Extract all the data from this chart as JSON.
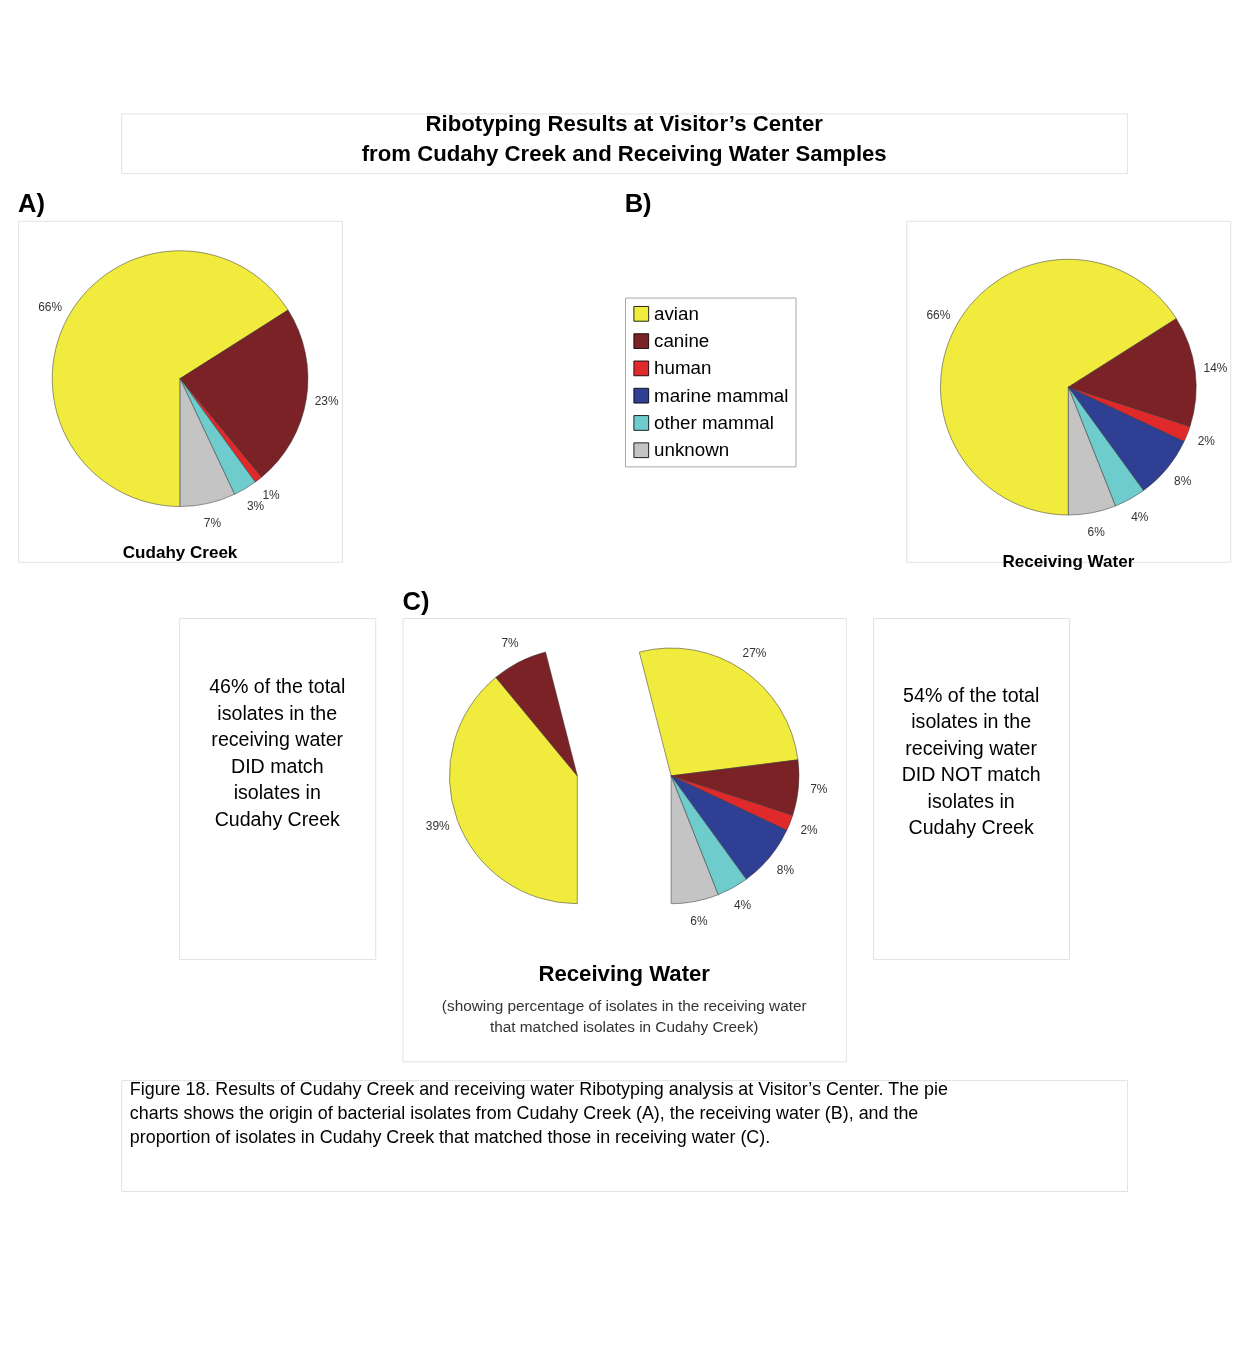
{
  "chart_data": [
    {
      "type": "other",
      "title": [
        "Ribotyping Results at Visitor’s Center",
        "from Cudahy Creek and Receiving Water Samples"
      ],
      "annotations": [
        "Figure 18.  Results of Cudahy Creek and receiving water Ribotyping analysis at Visitor’s Center.  The pie charts shows the origin of bacterial isolates from Cudahy Creek (A), the receiving water (B), and the proportion of isolates in Cudahy Creek that matched those in receiving water (C)."
      ]
    },
    {
      "type": "pie",
      "title": "A)",
      "xlabel": "Cudahy Creek",
      "values": [
        66,
        23,
        1,
        3,
        7
      ],
      "colors": [
        "#f0eb3c",
        "#7b2226",
        "#e0292b",
        "#6fcccc",
        "#c4c4c4"
      ],
      "value_labels": [
        "66%",
        "23%",
        "1%",
        "3%",
        "7%"
      ]
    },
    {
      "type": "pie",
      "title": "B)",
      "xlabel": "Receiving Water",
      "legend": "left",
      "categories": [
        "avian",
        "canine",
        "human",
        "marine mammal",
        "other mammal",
        "unknown"
      ],
      "values": [
        66,
        14,
        2,
        8,
        4,
        6
      ],
      "colors": [
        "#f0eb3c",
        "#7b2226",
        "#e0292b",
        "#2e3f94",
        "#6fcccc",
        "#c4c4c4"
      ],
      "value_labels": [
        "66%",
        "14%",
        "2%",
        "8%",
        "4%",
        "6%"
      ]
    },
    {
      "type": "pie",
      "title": "C)",
      "xlabel": "Receiving Water",
      "subtitle": "(showing percentage of isolates in the receiving water\nthat matched isolates in Cudahy Creek)",
      "series": [
        {
          "values": [
            39,
            7
          ],
          "colors": [
            "#f0eb3c",
            "#7b2226"
          ],
          "value_labels": [
            "39%",
            "7%"
          ]
        },
        {
          "values": [
            27,
            7,
            2,
            8,
            4,
            6
          ],
          "colors": [
            "#f0eb3c",
            "#7b2226",
            "#e0292b",
            "#2e3f94",
            "#6fcccc",
            "#c4c4c4"
          ],
          "value_labels": [
            "27%",
            "7%",
            "2%",
            "8%",
            "4%",
            "6%"
          ]
        }
      ],
      "annotations": [
        "46% of the total\nisolates in the\nreceiving water\nDID match\nisolates in\nCudahy Creek",
        "54% of the total\nisolates in the\nreceiving water\nDID NOT match\nisolates in\nCudahy Creek"
      ]
    }
  ]
}
